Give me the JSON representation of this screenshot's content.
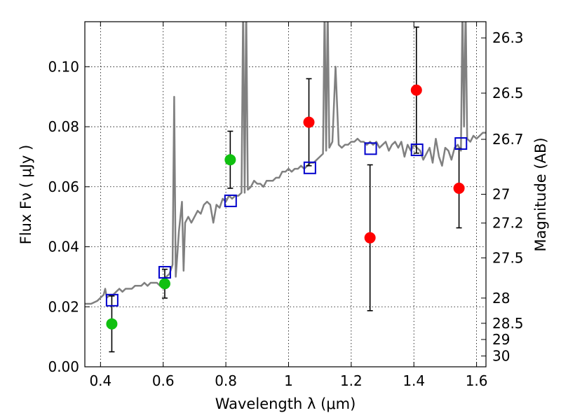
{
  "chart_data": {
    "type": "scatter",
    "xlabel": "Wavelength  λ (μm)",
    "ylabel": "Flux  Fν  ( μJy )",
    "y2label": "Magnitude (AB)",
    "xlim": [
      0.35,
      1.63
    ],
    "ylim": [
      0.0,
      0.115
    ],
    "grid": true,
    "x_ticks": [
      0.4,
      0.6,
      0.8,
      1.0,
      1.2,
      1.4,
      1.6
    ],
    "x_tick_labels": [
      "0.4",
      "0.6",
      "0.8",
      "1",
      "1.2",
      "1.4",
      "1.6"
    ],
    "y_ticks": [
      0.0,
      0.02,
      0.04,
      0.06,
      0.08,
      0.1
    ],
    "y_tick_labels": [
      "0.00",
      "0.02",
      "0.04",
      "0.06",
      "0.08",
      "0.10"
    ],
    "y2_ticks": [
      {
        "label": "26.3",
        "flux": 0.1096
      },
      {
        "label": "26.5",
        "flux": 0.0912
      },
      {
        "label": "26.7",
        "flux": 0.0758
      },
      {
        "label": "27",
        "flux": 0.0575
      },
      {
        "label": "27.2",
        "flux": 0.0479
      },
      {
        "label": "27.5",
        "flux": 0.0363
      },
      {
        "label": "28",
        "flux": 0.0229
      },
      {
        "label": "28.5",
        "flux": 0.0145
      },
      {
        "label": "29",
        "flux": 0.0091
      },
      {
        "label": "30",
        "flux": 0.0036
      }
    ],
    "series": [
      {
        "type": "line",
        "color": "#808080",
        "x": [
          0.35,
          0.37,
          0.39,
          0.4,
          0.41,
          0.415,
          0.42,
          0.43,
          0.44,
          0.45,
          0.46,
          0.47,
          0.48,
          0.49,
          0.5,
          0.51,
          0.52,
          0.53,
          0.54,
          0.55,
          0.56,
          0.57,
          0.58,
          0.59,
          0.6,
          0.61,
          0.62,
          0.63,
          0.635,
          0.64,
          0.645,
          0.65,
          0.66,
          0.665,
          0.67,
          0.68,
          0.69,
          0.7,
          0.71,
          0.72,
          0.73,
          0.74,
          0.75,
          0.76,
          0.77,
          0.78,
          0.79,
          0.8,
          0.81,
          0.82,
          0.83,
          0.84,
          0.85,
          0.855,
          0.86,
          0.865,
          0.87,
          0.88,
          0.89,
          0.9,
          0.91,
          0.92,
          0.93,
          0.94,
          0.95,
          0.96,
          0.97,
          0.98,
          0.99,
          1.0,
          1.01,
          1.02,
          1.03,
          1.04,
          1.05,
          1.06,
          1.07,
          1.08,
          1.09,
          1.1,
          1.11,
          1.115,
          1.12,
          1.125,
          1.13,
          1.14,
          1.15,
          1.16,
          1.17,
          1.18,
          1.19,
          1.2,
          1.21,
          1.22,
          1.23,
          1.24,
          1.25,
          1.26,
          1.27,
          1.28,
          1.29,
          1.3,
          1.31,
          1.32,
          1.33,
          1.34,
          1.35,
          1.36,
          1.37,
          1.38,
          1.39,
          1.4,
          1.41,
          1.42,
          1.43,
          1.44,
          1.45,
          1.46,
          1.47,
          1.48,
          1.49,
          1.5,
          1.51,
          1.52,
          1.53,
          1.54,
          1.55,
          1.555,
          1.56,
          1.565,
          1.57,
          1.58,
          1.59,
          1.6,
          1.61,
          1.62,
          1.63
        ],
        "y": [
          0.021,
          0.021,
          0.022,
          0.023,
          0.024,
          0.026,
          0.023,
          0.024,
          0.024,
          0.025,
          0.026,
          0.025,
          0.026,
          0.026,
          0.026,
          0.027,
          0.027,
          0.027,
          0.028,
          0.027,
          0.028,
          0.028,
          0.028,
          0.027,
          0.029,
          0.03,
          0.031,
          0.034,
          0.09,
          0.03,
          0.037,
          0.045,
          0.055,
          0.032,
          0.048,
          0.05,
          0.048,
          0.05,
          0.052,
          0.051,
          0.054,
          0.055,
          0.054,
          0.048,
          0.054,
          0.053,
          0.056,
          0.055,
          0.057,
          0.056,
          0.057,
          0.057,
          0.058,
          0.12,
          0.058,
          0.12,
          0.059,
          0.06,
          0.062,
          0.061,
          0.061,
          0.06,
          0.062,
          0.062,
          0.062,
          0.063,
          0.063,
          0.065,
          0.065,
          0.066,
          0.065,
          0.066,
          0.066,
          0.067,
          0.066,
          0.067,
          0.068,
          0.068,
          0.069,
          0.07,
          0.071,
          0.12,
          0.072,
          0.12,
          0.073,
          0.075,
          0.1,
          0.074,
          0.073,
          0.074,
          0.074,
          0.075,
          0.075,
          0.076,
          0.075,
          0.075,
          0.074,
          0.075,
          0.074,
          0.075,
          0.073,
          0.074,
          0.075,
          0.072,
          0.074,
          0.075,
          0.073,
          0.075,
          0.07,
          0.074,
          0.072,
          0.074,
          0.073,
          0.072,
          0.069,
          0.071,
          0.073,
          0.068,
          0.076,
          0.07,
          0.067,
          0.073,
          0.072,
          0.069,
          0.073,
          0.074,
          0.072,
          0.12,
          0.08,
          0.12,
          0.076,
          0.075,
          0.077,
          0.076,
          0.077,
          0.078,
          0.078
        ]
      },
      {
        "type": "errorbar",
        "color": "#10c010",
        "x": [
          0.436,
          0.605,
          0.814
        ],
        "y": [
          0.0143,
          0.0277,
          0.069
        ],
        "yerr": [
          0.0093,
          0.0048,
          0.0095
        ]
      },
      {
        "type": "errorbar",
        "color": "#ff0000",
        "x": [
          1.065,
          1.26,
          1.408,
          1.544
        ],
        "y": [
          0.0815,
          0.043,
          0.0922,
          0.0595
        ],
        "yerr": [
          0.0145,
          0.0243,
          0.021,
          0.0132
        ]
      },
      {
        "type": "square",
        "color": "#0000cc",
        "x": [
          0.437,
          0.605,
          0.815,
          1.068,
          1.262,
          1.41,
          1.55
        ],
        "y": [
          0.0222,
          0.0315,
          0.0553,
          0.0663,
          0.0727,
          0.0723,
          0.0744
        ]
      }
    ]
  }
}
